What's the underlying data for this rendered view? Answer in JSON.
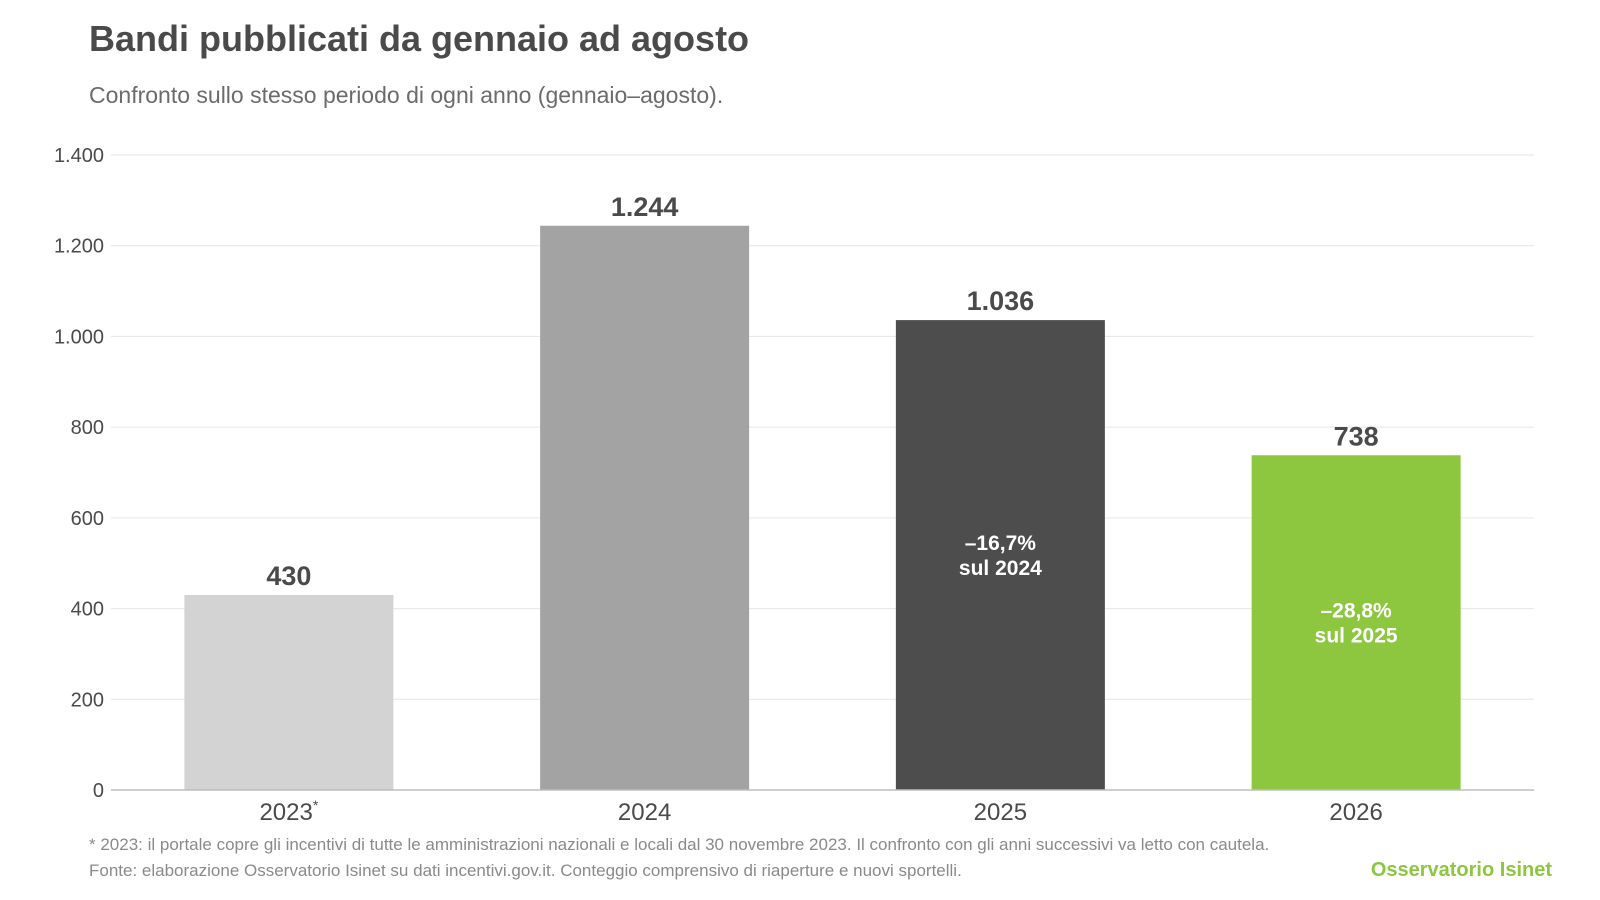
{
  "chart_data": {
    "type": "bar",
    "title": "Bandi pubblicati da gennaio ad agosto",
    "subtitle": "Confronto sullo stesso periodo di ogni anno (gennaio–agosto).",
    "categories": [
      "2023",
      "2024",
      "2025",
      "2026"
    ],
    "category_marks": [
      "*",
      "",
      "",
      ""
    ],
    "values": [
      430,
      1244,
      1036,
      738
    ],
    "value_labels": [
      "430",
      "1.244",
      "1.036",
      "738"
    ],
    "bar_colors": [
      "#d3d3d3",
      "#a3a3a3",
      "#4d4d4d",
      "#8dc63f"
    ],
    "annotations": [
      null,
      null,
      {
        "line1": "–16,7%",
        "line2": "sul 2024"
      },
      {
        "line1": "–28,8%",
        "line2": "sul 2025"
      }
    ],
    "ylim": [
      0,
      1400
    ],
    "yticks": [
      0,
      200,
      400,
      600,
      800,
      1000,
      1200,
      1400
    ],
    "ytick_labels": [
      "0",
      "200",
      "400",
      "600",
      "800",
      "1.000",
      "1.200",
      "1.400"
    ],
    "grid": true,
    "xlabel": "",
    "ylabel": ""
  },
  "footer": {
    "note": "* 2023: il portale copre gli incentivi di tutte le amministrazioni nazionali e locali dal 30 novembre 2023. Il confronto con gli anni successivi va letto con cautela.",
    "source": "Fonte: elaborazione Osservatorio Isinet su dati incentivi.gov.it. Conteggio comprensivo di riaperture e nuovi sportelli.",
    "brand": "Osservatorio Isinet"
  }
}
